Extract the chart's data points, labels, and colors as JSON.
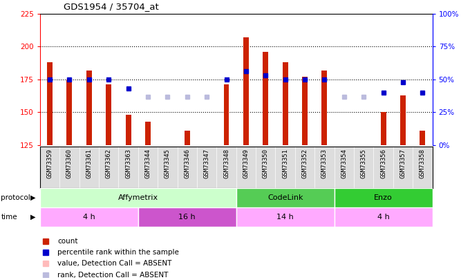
{
  "title": "GDS1954 / 35704_at",
  "samples": [
    "GSM73359",
    "GSM73360",
    "GSM73361",
    "GSM73362",
    "GSM73363",
    "GSM73344",
    "GSM73345",
    "GSM73346",
    "GSM73347",
    "GSM73348",
    "GSM73349",
    "GSM73350",
    "GSM73351",
    "GSM73352",
    "GSM73353",
    "GSM73354",
    "GSM73355",
    "GSM73356",
    "GSM73357",
    "GSM73358"
  ],
  "count_values": [
    188,
    175,
    182,
    171,
    148,
    143,
    null,
    136,
    null,
    171,
    207,
    196,
    188,
    177,
    182,
    null,
    null,
    150,
    163,
    136
  ],
  "count_absent": [
    false,
    false,
    false,
    false,
    false,
    false,
    true,
    false,
    true,
    false,
    false,
    false,
    false,
    false,
    false,
    true,
    true,
    false,
    false,
    false
  ],
  "rank_pct": [
    50,
    50,
    50,
    50,
    43,
    37,
    37,
    37,
    37,
    50,
    56,
    53,
    50,
    50,
    50,
    37,
    37,
    40,
    48,
    40
  ],
  "rank_absent": [
    false,
    false,
    false,
    false,
    false,
    true,
    true,
    true,
    true,
    false,
    false,
    false,
    false,
    false,
    false,
    true,
    true,
    false,
    false,
    false
  ],
  "ylim_left": [
    125,
    225
  ],
  "ylim_right": [
    0,
    100
  ],
  "yticks_left": [
    125,
    150,
    175,
    200,
    225
  ],
  "yticks_right": [
    0,
    25,
    50,
    75,
    100
  ],
  "ytick_labels_right": [
    "0%",
    "25%",
    "50%",
    "75%",
    "100%"
  ],
  "color_count": "#cc2200",
  "color_count_absent": "#ffbbbb",
  "color_rank": "#0000cc",
  "color_rank_absent": "#bbbbdd",
  "protocol_groups": [
    {
      "label": "Affymetrix",
      "start": 0,
      "end": 9,
      "color": "#ccffcc"
    },
    {
      "label": "CodeLink",
      "start": 10,
      "end": 14,
      "color": "#55cc55"
    },
    {
      "label": "Enzo",
      "start": 15,
      "end": 19,
      "color": "#33cc33"
    }
  ],
  "time_groups": [
    {
      "label": "4 h",
      "start": 0,
      "end": 4,
      "color": "#ffaaff"
    },
    {
      "label": "16 h",
      "start": 5,
      "end": 9,
      "color": "#cc55cc"
    },
    {
      "label": "14 h",
      "start": 10,
      "end": 14,
      "color": "#ffaaff"
    },
    {
      "label": "4 h",
      "start": 15,
      "end": 19,
      "color": "#ffaaff"
    }
  ],
  "legend_items": [
    {
      "label": "count",
      "color": "#cc2200"
    },
    {
      "label": "percentile rank within the sample",
      "color": "#0000cc"
    },
    {
      "label": "value, Detection Call = ABSENT",
      "color": "#ffbbbb"
    },
    {
      "label": "rank, Detection Call = ABSENT",
      "color": "#bbbbdd"
    }
  ],
  "bar_width": 0.4
}
